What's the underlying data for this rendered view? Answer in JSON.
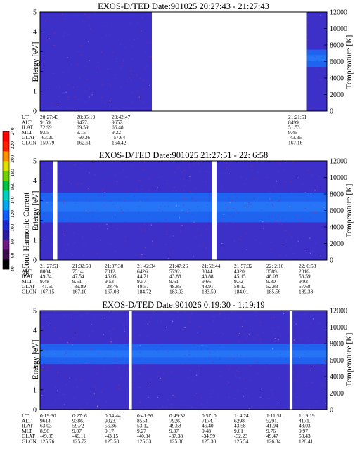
{
  "colorbar": {
    "label": "Second Harmonic Current",
    "ticks": [
      "40",
      "60",
      "80",
      "100",
      "120",
      "140",
      "160",
      "180",
      "200",
      "220",
      "240"
    ],
    "colors": [
      "#000000",
      "#3a0d4a",
      "#6a1a80",
      "#2a1aa0",
      "#1a2ad0",
      "#1060ff",
      "#00a8f0",
      "#00d0c0",
      "#00c040",
      "#70d000",
      "#e0e000",
      "#ff9000",
      "#ff2000",
      "#ff0000"
    ]
  },
  "chart_data": [
    {
      "type": "heatmap",
      "title": "EXOS-D/TED  Date:901025  20:27:43 - 21:27:43",
      "ylabel": "Energy [eV]",
      "y2label": "Temperature [K]",
      "ylim": [
        0,
        5
      ],
      "y2lim": [
        0,
        12000
      ],
      "yticks": [
        "0",
        "1",
        "2",
        "3",
        "4",
        "5"
      ],
      "y2ticks": [
        "0",
        "2000",
        "4000",
        "6000",
        "8000",
        "10000",
        "12000"
      ],
      "background_color": "#3c30c8",
      "data_segments": [
        [
          0.0,
          0.39
        ],
        [
          0.93,
          1.0
        ]
      ],
      "band": {
        "segment": 1,
        "energy_range": [
          2.2,
          3.1
        ],
        "color": "#1a6cf8"
      },
      "orbit_labels": [
        "UT",
        "ALT",
        "ILAT",
        "MLT",
        "GLAT",
        "GLON"
      ],
      "orbit_columns": [
        [
          "20:27:43",
          "9159.",
          "72.99",
          "9.05",
          "-63.20",
          "159.79"
        ],
        [
          "20:35:19",
          "9477.",
          "69.59",
          "9.15",
          "-60.36",
          "162.61"
        ],
        [
          "20:42:47",
          "9657.",
          "66.48",
          "9.22",
          "-57.64",
          "164.42"
        ],
        [
          "21:21:51",
          "8499.",
          "51.53",
          "9.45",
          "-43.35",
          "167.16"
        ]
      ]
    },
    {
      "type": "heatmap",
      "title": "EXOS-D/TED  Date:901025  21:27:51 - 22: 6:58",
      "ylabel": "Energy [eV]",
      "y2label": "Temperature [K]",
      "ylim": [
        0,
        5
      ],
      "y2lim": [
        0,
        12000
      ],
      "yticks": [
        "0",
        "1",
        "2",
        "3",
        "4",
        "5"
      ],
      "y2ticks": [
        "0",
        "2000",
        "4000",
        "6000",
        "8000",
        "10000",
        "12000"
      ],
      "background_color": "#3c30c8",
      "data_segments": [
        [
          0.0,
          0.045
        ],
        [
          0.06,
          0.6
        ],
        [
          0.615,
          1.0
        ]
      ],
      "band": {
        "segment": -1,
        "energy_range": [
          1.9,
          3.4
        ],
        "color": "#1a6cf8"
      },
      "orbit_labels": [
        "UT",
        "ALT",
        "ILAT",
        "MLT",
        "GLAT",
        "GLON"
      ],
      "orbit_columns": [
        [
          "21:27:51",
          "8004.",
          "49.34",
          "9.48",
          "-41.60",
          "167.15"
        ],
        [
          "21:32:58",
          "7514.",
          "47.54",
          "9.51",
          "-39.89",
          "167.10"
        ],
        [
          "21:37:38",
          "7012.",
          "46.05",
          "9.53",
          "-38.46",
          "167.03"
        ],
        [
          "21:42:34",
          "6426.",
          "44.71",
          "9.57",
          "49.57",
          "184.72"
        ],
        [
          "21:47:26",
          "5792.",
          "43.88",
          "9.61",
          "48.86",
          "183.93"
        ],
        [
          "21:52:44",
          "3044.",
          "43.88",
          "9.66",
          "48.91",
          "183.59"
        ],
        [
          "21:57:32",
          "4320.",
          "45.15",
          "9.72",
          "50.12",
          "184.01"
        ],
        [
          "22: 2:10",
          "3589.",
          "48.08",
          "9.80",
          "52.83",
          "185.56"
        ],
        [
          "22: 6:58",
          "2816.",
          "53.59",
          "9.92",
          "57.68",
          "189.38"
        ]
      ]
    },
    {
      "type": "heatmap",
      "title": "EXOS-D/TED  Date:901026  0:19:30 - 1:19:19",
      "ylabel": "Energy [eV]",
      "y2label": "Temperature [K]",
      "ylim": [
        0,
        5
      ],
      "y2lim": [
        0,
        12000
      ],
      "yticks": [
        "0",
        "1",
        "2",
        "3",
        "4",
        "5"
      ],
      "y2ticks": [
        "0",
        "2000",
        "4000",
        "6000",
        "8000",
        "10000",
        "12000"
      ],
      "background_color": "#3c30c8",
      "data_segments": [
        [
          0.0,
          0.31
        ],
        [
          0.32,
          0.87
        ],
        [
          0.88,
          1.0
        ]
      ],
      "band": {
        "segment": -1,
        "energy_range": [
          2.3,
          3.3
        ],
        "color": "#1a6cf8"
      },
      "orbit_labels": [
        "UT",
        "ALT",
        "ILAT",
        "MLT",
        "GLAT",
        "GLON"
      ],
      "orbit_columns": [
        [
          "0:19:30",
          "9614.",
          "63.03",
          "8.96",
          "-49.05",
          "125.76"
        ],
        [
          "0:27: 6",
          "9386.",
          "59.72",
          "9.07",
          "-46.11",
          "125.72"
        ],
        [
          "0:34:44",
          "9023.",
          "56.36",
          "9.17",
          "-43.15",
          "125.58"
        ],
        [
          "0:41:56",
          "8554.",
          "53.12",
          "9.27",
          "-40.34",
          "125.33"
        ],
        [
          "0:49:32",
          "7926.",
          "49.68",
          "9.37",
          "-37.38",
          "125.30"
        ],
        [
          "0:57: 0",
          "7174.",
          "46.40",
          "9.48",
          "-34.59",
          "125.30"
        ],
        [
          "1: 4:24",
          "6298.",
          "43.58",
          "9.61",
          "-32.23",
          "125.54"
        ],
        [
          "1:11:51",
          "5291.",
          "41.94",
          "9.76",
          "49.47",
          "126.34"
        ],
        [
          "1:19:19",
          "4171.",
          "43.03",
          "9.97",
          "50.43",
          "128.41"
        ]
      ]
    }
  ]
}
